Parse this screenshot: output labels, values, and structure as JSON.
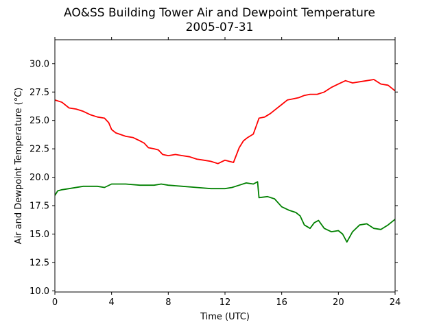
{
  "chart_data": {
    "type": "line",
    "title": "AO&SS Building Tower Air and Dewpoint Temperature",
    "subtitle": "2005-07-31",
    "xlabel": "Time (UTC)",
    "ylabel": "Air and Dewpoint Temperature (°C)",
    "xlim": [
      0,
      24
    ],
    "ylim": [
      9.9,
      32.1
    ],
    "x_ticks": [
      0,
      4,
      8,
      12,
      16,
      20,
      24
    ],
    "x_tick_labels": [
      "0",
      "4",
      "8",
      "12",
      "16",
      "20",
      "24"
    ],
    "y_ticks": [
      10.0,
      12.5,
      15.0,
      17.5,
      20.0,
      22.5,
      25.0,
      27.5,
      30.0
    ],
    "y_tick_labels": [
      "10.0",
      "12.5",
      "15.0",
      "17.5",
      "20.0",
      "22.5",
      "25.0",
      "27.5",
      "30.0"
    ],
    "grid": false,
    "series": [
      {
        "color": "#ff0000",
        "points": [
          [
            0,
            26.8
          ],
          [
            0.5,
            26.6
          ],
          [
            1,
            26.1
          ],
          [
            1.5,
            26.0
          ],
          [
            2,
            25.8
          ],
          [
            2.5,
            25.5
          ],
          [
            3,
            25.3
          ],
          [
            3.5,
            25.2
          ],
          [
            3.8,
            24.8
          ],
          [
            4,
            24.2
          ],
          [
            4.3,
            23.9
          ],
          [
            5,
            23.6
          ],
          [
            5.5,
            23.5
          ],
          [
            6,
            23.2
          ],
          [
            6.3,
            23.0
          ],
          [
            6.6,
            22.6
          ],
          [
            7,
            22.5
          ],
          [
            7.3,
            22.4
          ],
          [
            7.6,
            22.0
          ],
          [
            8,
            21.9
          ],
          [
            8.5,
            22.0
          ],
          [
            9,
            21.9
          ],
          [
            9.5,
            21.8
          ],
          [
            10,
            21.6
          ],
          [
            10.5,
            21.5
          ],
          [
            11,
            21.4
          ],
          [
            11.5,
            21.2
          ],
          [
            12,
            21.5
          ],
          [
            12.6,
            21.3
          ],
          [
            13,
            22.6
          ],
          [
            13.3,
            23.2
          ],
          [
            13.6,
            23.5
          ],
          [
            14,
            23.8
          ],
          [
            14.2,
            24.5
          ],
          [
            14.4,
            25.2
          ],
          [
            14.8,
            25.3
          ],
          [
            15.2,
            25.6
          ],
          [
            15.6,
            26.0
          ],
          [
            16,
            26.4
          ],
          [
            16.4,
            26.8
          ],
          [
            16.8,
            26.9
          ],
          [
            17.2,
            27.0
          ],
          [
            17.6,
            27.2
          ],
          [
            18,
            27.3
          ],
          [
            18.5,
            27.3
          ],
          [
            19,
            27.5
          ],
          [
            19.5,
            27.9
          ],
          [
            20,
            28.2
          ],
          [
            20.5,
            28.5
          ],
          [
            21,
            28.3
          ],
          [
            21.5,
            28.4
          ],
          [
            22,
            28.5
          ],
          [
            22.5,
            28.6
          ],
          [
            23,
            28.2
          ],
          [
            23.5,
            28.1
          ],
          [
            24,
            27.6
          ]
        ]
      },
      {
        "color": "#008000",
        "points": [
          [
            0,
            18.4
          ],
          [
            0.2,
            18.8
          ],
          [
            0.5,
            18.9
          ],
          [
            1,
            19.0
          ],
          [
            2,
            19.2
          ],
          [
            3,
            19.2
          ],
          [
            3.5,
            19.1
          ],
          [
            4,
            19.4
          ],
          [
            5,
            19.4
          ],
          [
            6,
            19.3
          ],
          [
            7,
            19.3
          ],
          [
            7.5,
            19.4
          ],
          [
            8,
            19.3
          ],
          [
            9,
            19.2
          ],
          [
            10,
            19.1
          ],
          [
            11,
            19.0
          ],
          [
            12,
            19.0
          ],
          [
            12.5,
            19.1
          ],
          [
            13,
            19.3
          ],
          [
            13.5,
            19.5
          ],
          [
            14,
            19.4
          ],
          [
            14.3,
            19.6
          ],
          [
            14.4,
            18.2
          ],
          [
            15,
            18.3
          ],
          [
            15.5,
            18.1
          ],
          [
            16,
            17.4
          ],
          [
            16.5,
            17.1
          ],
          [
            17,
            16.9
          ],
          [
            17.3,
            16.6
          ],
          [
            17.6,
            15.8
          ],
          [
            18,
            15.5
          ],
          [
            18.3,
            16.0
          ],
          [
            18.6,
            16.2
          ],
          [
            19,
            15.5
          ],
          [
            19.5,
            15.2
          ],
          [
            20,
            15.3
          ],
          [
            20.3,
            15.0
          ],
          [
            20.6,
            14.3
          ],
          [
            21,
            15.2
          ],
          [
            21.5,
            15.8
          ],
          [
            22,
            15.9
          ],
          [
            22.5,
            15.5
          ],
          [
            23,
            15.4
          ],
          [
            23.5,
            15.8
          ],
          [
            24,
            16.3
          ]
        ]
      }
    ]
  }
}
